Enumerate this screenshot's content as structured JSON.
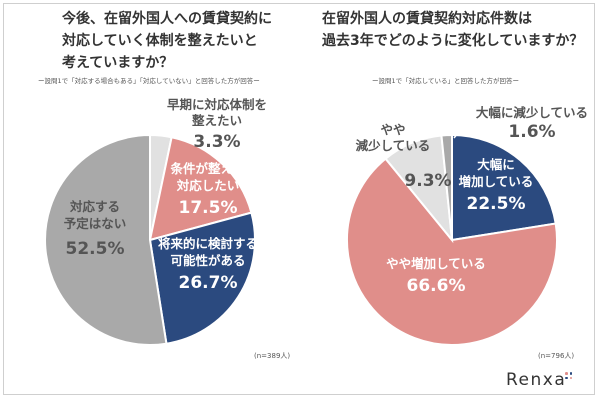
{
  "left": {
    "title_lines": [
      "今後、在留外国人への賃貸契約に",
      "対応していく体制を整えたいと",
      "考えていますか？"
    ],
    "note": "ー設問1で「対応する場合もある」「対応していない」と回答した方が回答ー",
    "n": "(n=389人)"
  },
  "right": {
    "title_lines": [
      "在留外国人の賃貸契約対応件数は",
      "過去3年でどのように変化していますか？"
    ],
    "note": "ー設問1で「対応している」と回答した方が回答ー",
    "n": "(n=796人)"
  },
  "logo": {
    "text": "Renxa"
  },
  "colors": {
    "navy": "#2b4a7f",
    "pink": "#e08e8a",
    "lightgray": "#e1e1e1",
    "gray": "#a9a9a9",
    "text": "#333333",
    "white": "#ffffff"
  },
  "chart_data": [
    {
      "type": "pie",
      "title": "今後、在留外国人への賃貸契約に対応していく体制を整えたいと考えていますか？",
      "slices": [
        {
          "label_lines": [
            "早期に対応体制を",
            "整えたい"
          ],
          "value": 3.3,
          "display": "3.3%",
          "color": "#e1e1e1"
        },
        {
          "label_lines": [
            "条件が整えば",
            "対応したい"
          ],
          "value": 17.5,
          "display": "17.5%",
          "color": "#e08e8a"
        },
        {
          "label_lines": [
            "将来的に検討する",
            "可能性がある"
          ],
          "value": 26.7,
          "display": "26.7%",
          "color": "#2b4a7f"
        },
        {
          "label_lines": [
            "対応する",
            "予定はない"
          ],
          "value": 52.5,
          "display": "52.5%",
          "color": "#a9a9a9"
        }
      ]
    },
    {
      "type": "pie",
      "title": "在留外国人の賃貸契約対応件数は過去3年でどのように変化していますか？",
      "slices": [
        {
          "label_lines": [
            "大幅に",
            "増加している"
          ],
          "value": 22.5,
          "display": "22.5%",
          "color": "#2b4a7f"
        },
        {
          "label_lines": [
            "やや増加している"
          ],
          "value": 66.6,
          "display": "66.6%",
          "color": "#e08e8a"
        },
        {
          "label_lines": [
            "やや",
            "減少している"
          ],
          "value": 9.3,
          "display": "9.3%",
          "color": "#e1e1e1"
        },
        {
          "label_lines": [
            "大幅に減少している"
          ],
          "value": 1.6,
          "display": "1.6%",
          "color": "#a9a9a9"
        }
      ]
    }
  ]
}
